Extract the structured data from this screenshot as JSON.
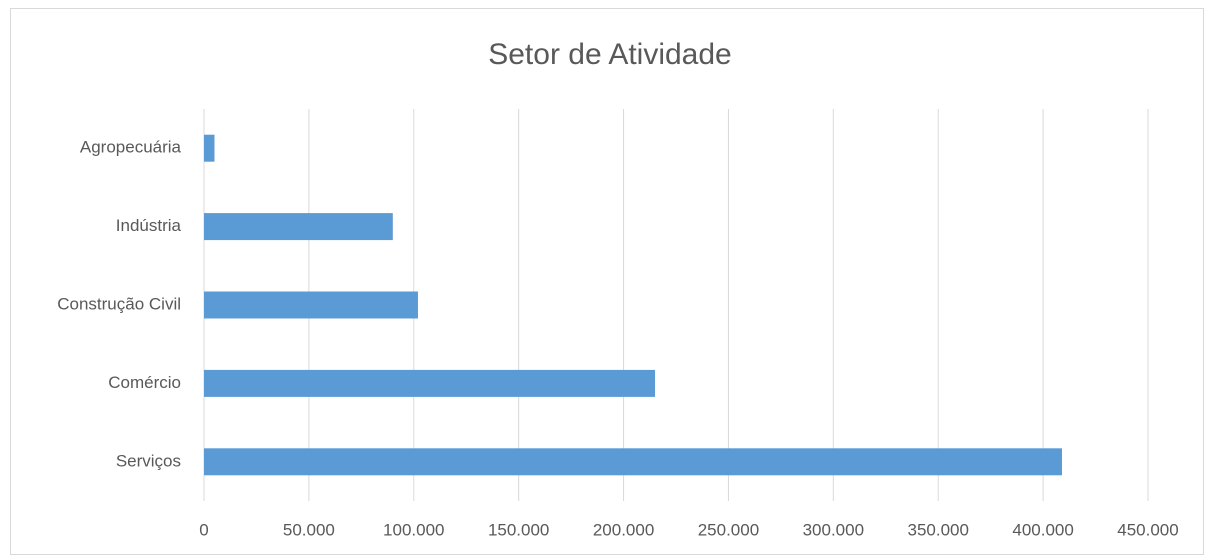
{
  "chart_data": {
    "type": "bar",
    "orientation": "horizontal",
    "title": "Setor de Atividade",
    "categories": [
      "Agropecuária",
      "Indústria",
      "Construção Civil",
      "Comércio",
      "Serviços"
    ],
    "values": [
      5000,
      90000,
      102000,
      215000,
      409000
    ],
    "color": "#5b9bd5",
    "xlim": [
      0,
      450000
    ],
    "xticks": [
      0,
      {
        "value": 50000,
        "label": "50.000"
      },
      {
        "value": 100000,
        "label": "100.000"
      },
      {
        "value": 150000,
        "label": "150.000"
      },
      {
        "value": 200000,
        "label": "200.000"
      },
      {
        "value": 250000,
        "label": "250.000"
      },
      {
        "value": 300000,
        "label": "300.000"
      },
      {
        "value": 350000,
        "label": "350.000"
      },
      {
        "value": 400000,
        "label": "400.000"
      },
      {
        "value": 450000,
        "label": "450.000"
      }
    ],
    "grid": true
  }
}
